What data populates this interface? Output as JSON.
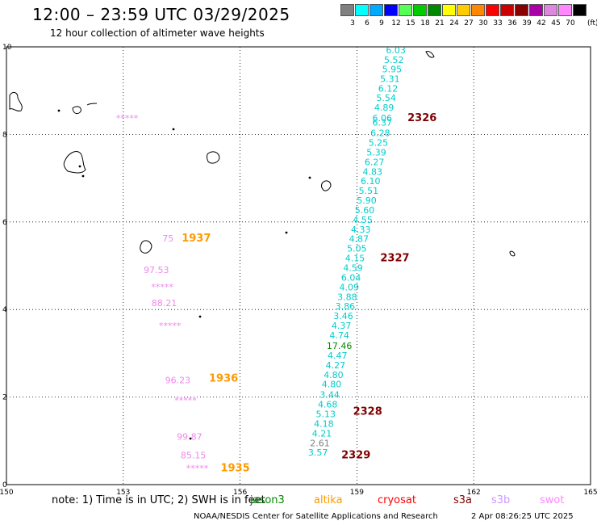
{
  "header": {
    "title": "12:00 – 23:59 UTC 03/29/2025",
    "subtitle": "12 hour collection of altimeter wave heights"
  },
  "legend": {
    "unit": "(ft)",
    "bins": [
      {
        "label": "3",
        "color": "#808080"
      },
      {
        "label": "6",
        "color": "#00ffff"
      },
      {
        "label": "9",
        "color": "#00aaff"
      },
      {
        "label": "12",
        "color": "#0000ff"
      },
      {
        "label": "15",
        "color": "#55ff55"
      },
      {
        "label": "18",
        "color": "#00cc00"
      },
      {
        "label": "21",
        "color": "#008800"
      },
      {
        "label": "24",
        "color": "#ffff00"
      },
      {
        "label": "27",
        "color": "#ffcc00"
      },
      {
        "label": "30",
        "color": "#ff8800"
      },
      {
        "label": "33",
        "color": "#ff0000"
      },
      {
        "label": "36",
        "color": "#cc0000"
      },
      {
        "label": "39",
        "color": "#880000"
      },
      {
        "label": "42",
        "color": "#aa00aa"
      },
      {
        "label": "45",
        "color": "#dd88dd"
      },
      {
        "label": "70",
        "color": "#ff88ff"
      },
      {
        "label": "",
        "color": "#000000"
      }
    ]
  },
  "axes": {
    "x_ticks": [
      "150",
      "153",
      "156",
      "159",
      "162",
      "165"
    ],
    "y_ticks": [
      "0",
      "2",
      "4",
      "6",
      "8",
      "10"
    ],
    "grid": "dotted"
  },
  "tracks": {
    "jason_main": {
      "color": "#00cccc",
      "points": [
        {
          "lon": 160.0,
          "lat": 9.85,
          "v": "6.03"
        },
        {
          "lon": 159.95,
          "lat": 9.63,
          "v": "5.52"
        },
        {
          "lon": 159.9,
          "lat": 9.42,
          "v": "5.95"
        },
        {
          "lon": 159.85,
          "lat": 9.2,
          "v": "5.31"
        },
        {
          "lon": 159.8,
          "lat": 8.98,
          "v": "6.12"
        },
        {
          "lon": 159.75,
          "lat": 8.76,
          "v": "5.54"
        },
        {
          "lon": 159.7,
          "lat": 8.54,
          "v": "4.89"
        },
        {
          "lon": 159.65,
          "lat": 8.3,
          "v": "6.06"
        },
        {
          "lon": 159.65,
          "lat": 8.2,
          "v": "6.37"
        },
        {
          "lon": 159.6,
          "lat": 7.96,
          "v": "6.28"
        },
        {
          "lon": 159.55,
          "lat": 7.74,
          "v": "5.25"
        },
        {
          "lon": 159.5,
          "lat": 7.52,
          "v": "5.39"
        },
        {
          "lon": 159.45,
          "lat": 7.3,
          "v": "6.27"
        },
        {
          "lon": 159.4,
          "lat": 7.08,
          "v": "4.83"
        },
        {
          "lon": 159.35,
          "lat": 6.86,
          "v": "6.10"
        },
        {
          "lon": 159.3,
          "lat": 6.64,
          "v": "5.51"
        },
        {
          "lon": 159.25,
          "lat": 6.42,
          "v": "5.90"
        },
        {
          "lon": 159.2,
          "lat": 6.2,
          "v": "5.60"
        },
        {
          "lon": 159.15,
          "lat": 5.98,
          "v": "4.55"
        },
        {
          "lon": 159.1,
          "lat": 5.76,
          "v": "4.33"
        },
        {
          "lon": 159.05,
          "lat": 5.54,
          "v": "4.87"
        },
        {
          "lon": 159.0,
          "lat": 5.32,
          "v": "5.05"
        },
        {
          "lon": 158.95,
          "lat": 5.1,
          "v": "4.15"
        },
        {
          "lon": 158.9,
          "lat": 4.88,
          "v": "4.59"
        },
        {
          "lon": 158.85,
          "lat": 4.66,
          "v": "6.04"
        },
        {
          "lon": 158.8,
          "lat": 4.44,
          "v": "4.09"
        },
        {
          "lon": 158.75,
          "lat": 4.22,
          "v": "3.88"
        },
        {
          "lon": 158.7,
          "lat": 4.0,
          "v": "3.86"
        },
        {
          "lon": 158.65,
          "lat": 3.78,
          "v": "3.46"
        },
        {
          "lon": 158.6,
          "lat": 3.56,
          "v": "4.37"
        },
        {
          "lon": 158.55,
          "lat": 3.34,
          "v": "4.74"
        },
        {
          "lon": 158.55,
          "lat": 3.1,
          "v": "17.46",
          "color": "#008800"
        },
        {
          "lon": 158.5,
          "lat": 2.88,
          "v": "4.47"
        },
        {
          "lon": 158.45,
          "lat": 2.66,
          "v": "4.27"
        },
        {
          "lon": 158.4,
          "lat": 2.44,
          "v": "4.80"
        },
        {
          "lon": 158.35,
          "lat": 2.22,
          "v": "4.80"
        },
        {
          "lon": 158.3,
          "lat": 1.98,
          "v": "3.44"
        },
        {
          "lon": 158.25,
          "lat": 1.76,
          "v": "4.68"
        },
        {
          "lon": 158.2,
          "lat": 1.54,
          "v": "5.13"
        },
        {
          "lon": 158.15,
          "lat": 1.32,
          "v": "4.18"
        },
        {
          "lon": 158.1,
          "lat": 1.1,
          "v": "4.21"
        },
        {
          "lon": 158.05,
          "lat": 0.88,
          "v": "2.61",
          "color": "#808080"
        },
        {
          "lon": 158.0,
          "lat": 0.66,
          "v": "3.57"
        }
      ]
    },
    "swot": {
      "color": "#ee88ee",
      "points": [
        {
          "lon": 153.1,
          "lat": 8.3,
          "v": "*****"
        },
        {
          "lon": 154.15,
          "lat": 5.55,
          "v": "75"
        },
        {
          "lon": 153.85,
          "lat": 4.83,
          "v": "97.53"
        },
        {
          "lon": 154.0,
          "lat": 4.45,
          "v": "*****"
        },
        {
          "lon": 154.05,
          "lat": 4.08,
          "v": "88.21"
        },
        {
          "lon": 154.2,
          "lat": 3.56,
          "v": "*****"
        },
        {
          "lon": 154.4,
          "lat": 2.32,
          "v": "96.23"
        },
        {
          "lon": 154.6,
          "lat": 1.85,
          "v": "*****"
        },
        {
          "lon": 154.7,
          "lat": 1.02,
          "v": "99.87"
        },
        {
          "lon": 154.8,
          "lat": 0.6,
          "v": "85.15"
        },
        {
          "lon": 154.9,
          "lat": 0.3,
          "v": "*****"
        }
      ]
    }
  },
  "pass_labels": [
    {
      "text": "2326",
      "lon": 160.3,
      "lat": 8.3,
      "color": "#800000"
    },
    {
      "text": "2327",
      "lon": 159.6,
      "lat": 5.1,
      "color": "#800000"
    },
    {
      "text": "2328",
      "lon": 158.9,
      "lat": 1.6,
      "color": "#800000"
    },
    {
      "text": "2329",
      "lon": 158.6,
      "lat": 0.6,
      "color": "#800000"
    },
    {
      "text": "1937",
      "lon": 154.5,
      "lat": 5.55,
      "color": "#ff9900"
    },
    {
      "text": "1936",
      "lon": 155.2,
      "lat": 2.35,
      "color": "#ff9900"
    },
    {
      "text": "1935",
      "lon": 155.5,
      "lat": 0.3,
      "color": "#ff9900"
    }
  ],
  "footer": {
    "note": "note: 1) Time is in UTC; 2) SWH is in feet",
    "satellites": [
      {
        "name": "jason3",
        "color": "#008800"
      },
      {
        "name": "altika",
        "color": "#ff9900"
      },
      {
        "name": "cryosat",
        "color": "#ff0000"
      },
      {
        "name": "s3a",
        "color": "#800000"
      },
      {
        "name": "s3b",
        "color": "#cc99ff"
      },
      {
        "name": "swot",
        "color": "#ff88ff"
      }
    ],
    "credit": "NOAA/NESDIS Center for Satellite Applications and Research",
    "timestamp": "2 Apr 08:26:25 UTC 2025"
  }
}
